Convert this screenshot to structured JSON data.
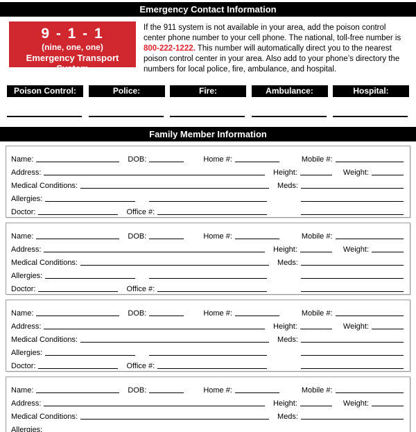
{
  "page": {
    "header": "Emergency Contact Information",
    "accent_red": "#d0262e",
    "phone_red": "#e5232b"
  },
  "emergency": {
    "badge": {
      "number": "9 - 1 - 1",
      "pronunciation": "(nine, one, one)",
      "subtitle": "Emergency Transport System"
    },
    "paragraph": {
      "part1": "If the 911 system is not available in your area, add the poison control center phone number to your cell phone. The national, toll-free number is ",
      "phone": "800-222-1222.",
      "part2": " This number will automatically direct you to the nearest poison control center in your area. Also add to your phone’s directory the numbers for local police, fire, ambulance, and hospital."
    },
    "contacts": [
      {
        "label": "Poison Control:",
        "value": ""
      },
      {
        "label": "Police:",
        "value": ""
      },
      {
        "label": "Fire:",
        "value": ""
      },
      {
        "label": "Ambulance:",
        "value": ""
      },
      {
        "label": "Hospital:",
        "value": ""
      }
    ]
  },
  "family": {
    "header": "Family Member Information",
    "member_count": 4,
    "labels": {
      "name": "Name:",
      "dob": "DOB:",
      "home": "Home #:",
      "mobile": "Mobile #:",
      "address": "Address:",
      "height": "Height:",
      "weight": "Weight:",
      "medical": "Medical Conditions:",
      "meds": "Meds:",
      "allergies": "Allergies:",
      "doctor": "Doctor:",
      "office": "Office #:"
    }
  }
}
